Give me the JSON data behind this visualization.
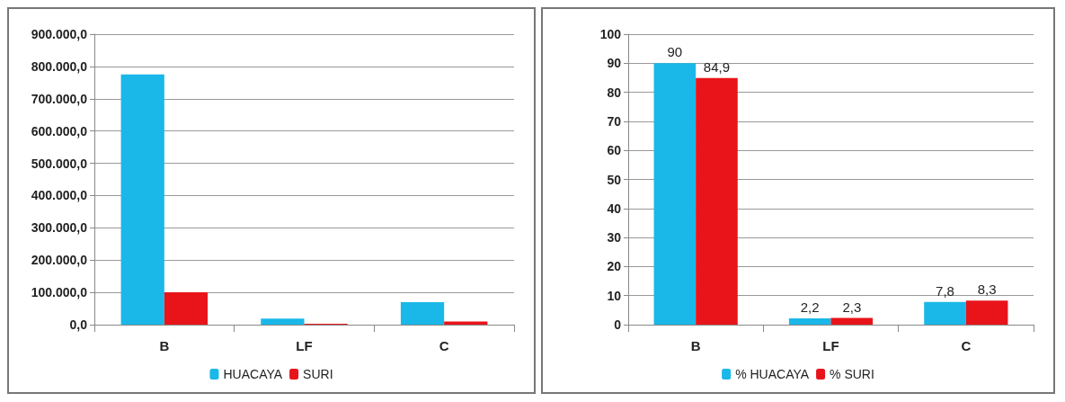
{
  "chart_data": [
    {
      "type": "bar",
      "categories": [
        "B",
        "LF",
        "C"
      ],
      "series": [
        {
          "name": "HUACAYA",
          "color": "#1ab8e8",
          "values": [
            775000,
            19000,
            70000
          ]
        },
        {
          "name": "SURI",
          "color": "#e8141a",
          "values": [
            100000,
            3000,
            10000
          ]
        }
      ],
      "ylim": [
        0,
        900000
      ],
      "yticks": [
        {
          "value": 0,
          "label": "0,0"
        },
        {
          "value": 100000,
          "label": "100.000,0"
        },
        {
          "value": 200000,
          "label": "200.000,0"
        },
        {
          "value": 300000,
          "label": "300.000,0"
        },
        {
          "value": 400000,
          "label": "400.000,0"
        },
        {
          "value": 500000,
          "label": "500.000,0"
        },
        {
          "value": 600000,
          "label": "600.000,0"
        },
        {
          "value": 700000,
          "label": "700.000,0"
        },
        {
          "value": 800000,
          "label": "800.000,0"
        },
        {
          "value": 900000,
          "label": "900.000,0"
        }
      ],
      "grid": "y",
      "legend": "bottom"
    },
    {
      "type": "bar",
      "categories": [
        "B",
        "LF",
        "C"
      ],
      "series": [
        {
          "name": "% HUACAYA",
          "color": "#1ab8e8",
          "values": [
            90,
            2.2,
            7.8
          ],
          "value_labels": [
            "90",
            "2,2",
            "7,8"
          ]
        },
        {
          "name": "% SURI",
          "color": "#e8141a",
          "values": [
            84.9,
            2.3,
            8.3
          ],
          "value_labels": [
            "84,9",
            "2,3",
            "8,3"
          ]
        }
      ],
      "ylim": [
        0,
        100
      ],
      "yticks": [
        0,
        10,
        20,
        30,
        40,
        50,
        60,
        70,
        80,
        90,
        100
      ],
      "grid": "y",
      "legend": "bottom"
    }
  ]
}
